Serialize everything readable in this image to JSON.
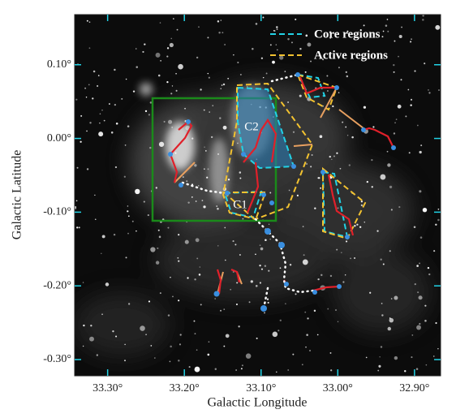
{
  "chart_data": {
    "type": "image",
    "xlabel": "Galactic Longitude",
    "ylabel": "Galactic Latitude",
    "xlim": [
      33.343,
      32.866
    ],
    "ylim": [
      -0.322,
      0.168
    ],
    "xticks": [
      {
        "value": 33.3,
        "label": "33.30°"
      },
      {
        "value": 33.2,
        "label": "33.20°"
      },
      {
        "value": 33.1,
        "label": "33.10°"
      },
      {
        "value": 33.0,
        "label": "33.00°"
      },
      {
        "value": 32.9,
        "label": "32.90°"
      }
    ],
    "yticks": [
      {
        "value": 0.1,
        "label": "0.10°"
      },
      {
        "value": 0.0,
        "label": "0.00°"
      },
      {
        "value": -0.1,
        "label": "-0.10°"
      },
      {
        "value": -0.2,
        "label": "-0.20°"
      },
      {
        "value": -0.3,
        "label": "-0.30°"
      }
    ],
    "series": [
      {
        "name": "Core regions",
        "color": "#22d3e6"
      },
      {
        "name": "Active regions",
        "color": "#f2c230"
      }
    ],
    "annotations": [
      "C1",
      "C2"
    ]
  }
}
